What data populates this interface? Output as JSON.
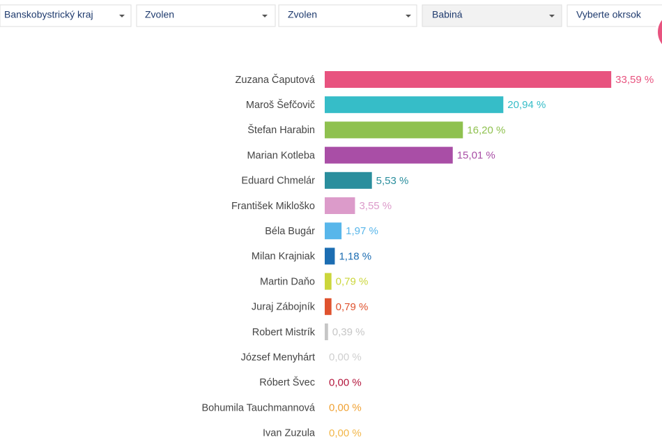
{
  "filters": [
    "Banskobystrický kraj",
    "Zvolen",
    "Zvolen",
    "Babiná",
    "Vyberte okrsok"
  ],
  "chart_data": {
    "type": "bar",
    "orientation": "horizontal",
    "categories": [
      "Zuzana Čaputová",
      "Maroš Šefčovič",
      "Štefan Harabin",
      "Marian Kotleba",
      "Eduard Chmelár",
      "František Mikloško",
      "Béla Bugár",
      "Milan Krajniak",
      "Martin Daňo",
      "Juraj Zábojník",
      "Robert Mistrík",
      "József Menyhárt",
      "Róbert Švec",
      "Bohumila Tauchmannová",
      "Ivan Zuzula"
    ],
    "values": [
      33.59,
      20.94,
      16.2,
      15.01,
      5.53,
      3.55,
      1.97,
      1.18,
      0.79,
      0.79,
      0.39,
      0,
      0,
      0,
      0
    ],
    "value_labels": [
      "33,59 %",
      "20,94 %",
      "16,20 %",
      "15,01 %",
      "5,53 %",
      "3,55 %",
      "1,97 %",
      "1,18 %",
      "0,79 %",
      "0,79 %",
      "0,39 %",
      "0,00 %",
      "0,00 %",
      "0,00 %",
      "0,00 %"
    ],
    "colors": [
      "#e8537f",
      "#36bdc8",
      "#8fc14f",
      "#a94ea6",
      "#2a8e9d",
      "#dc9bca",
      "#58b6ea",
      "#1c6db2",
      "#cbd63b",
      "#df522e",
      "#c6c6c6",
      "#cfcfcf",
      "#b3163c",
      "#f0a132",
      "#f2b648"
    ]
  }
}
